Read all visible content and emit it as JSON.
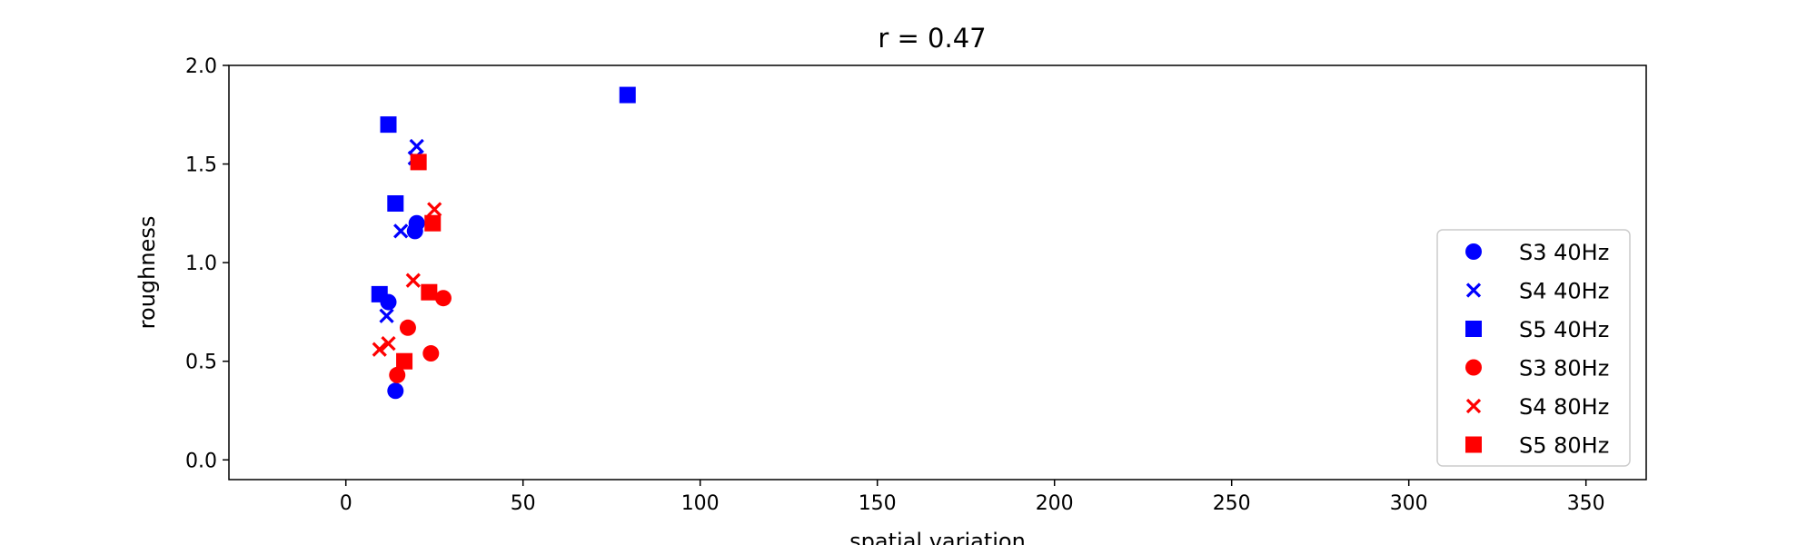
{
  "chart_data": {
    "type": "scatter",
    "title": "r = 0.47",
    "xlabel": "spatial variation",
    "ylabel": "roughness",
    "xlim": [
      -33,
      367
    ],
    "ylim": [
      -0.1,
      2.0
    ],
    "xticks": [
      0,
      50,
      100,
      150,
      200,
      250,
      300,
      350
    ],
    "yticks": [
      0.0,
      0.5,
      1.0,
      1.5,
      2.0
    ],
    "xtick_labels": [
      "0",
      "50",
      "100",
      "150",
      "200",
      "250",
      "300",
      "350"
    ],
    "ytick_labels": [
      "0.0",
      "0.5",
      "1.0",
      "1.5",
      "2.0"
    ],
    "grid": false,
    "legend_position": "lower-right",
    "series": [
      {
        "name": "S3 40Hz",
        "color": "#0000ff",
        "marker": "circle",
        "points": [
          [
            12,
            0.8
          ],
          [
            14,
            0.35
          ],
          [
            20,
            1.2
          ],
          [
            19.5,
            1.16
          ]
        ]
      },
      {
        "name": "S4 40Hz",
        "color": "#0000ff",
        "marker": "x",
        "points": [
          [
            11.5,
            0.73
          ],
          [
            15.5,
            1.16
          ],
          [
            20,
            1.59
          ],
          [
            19.5,
            1.53
          ]
        ]
      },
      {
        "name": "S5 40Hz",
        "color": "#0000ff",
        "marker": "square",
        "points": [
          [
            9.5,
            0.84
          ],
          [
            12,
            1.7
          ],
          [
            14,
            1.3
          ],
          [
            79.5,
            1.85
          ]
        ]
      },
      {
        "name": "S3 80Hz",
        "color": "#ff0000",
        "marker": "circle",
        "points": [
          [
            14.5,
            0.43
          ],
          [
            17.5,
            0.67
          ],
          [
            24,
            0.54
          ],
          [
            27.5,
            0.82
          ]
        ]
      },
      {
        "name": "S4 80Hz",
        "color": "#ff0000",
        "marker": "x",
        "points": [
          [
            9.5,
            0.56
          ],
          [
            12,
            0.59
          ],
          [
            19,
            0.91
          ],
          [
            25,
            1.27
          ]
        ]
      },
      {
        "name": "S5 80Hz",
        "color": "#ff0000",
        "marker": "square",
        "points": [
          [
            16.5,
            0.5
          ],
          [
            20.5,
            1.51
          ],
          [
            23.5,
            0.85
          ],
          [
            24.5,
            1.2
          ]
        ]
      }
    ]
  }
}
